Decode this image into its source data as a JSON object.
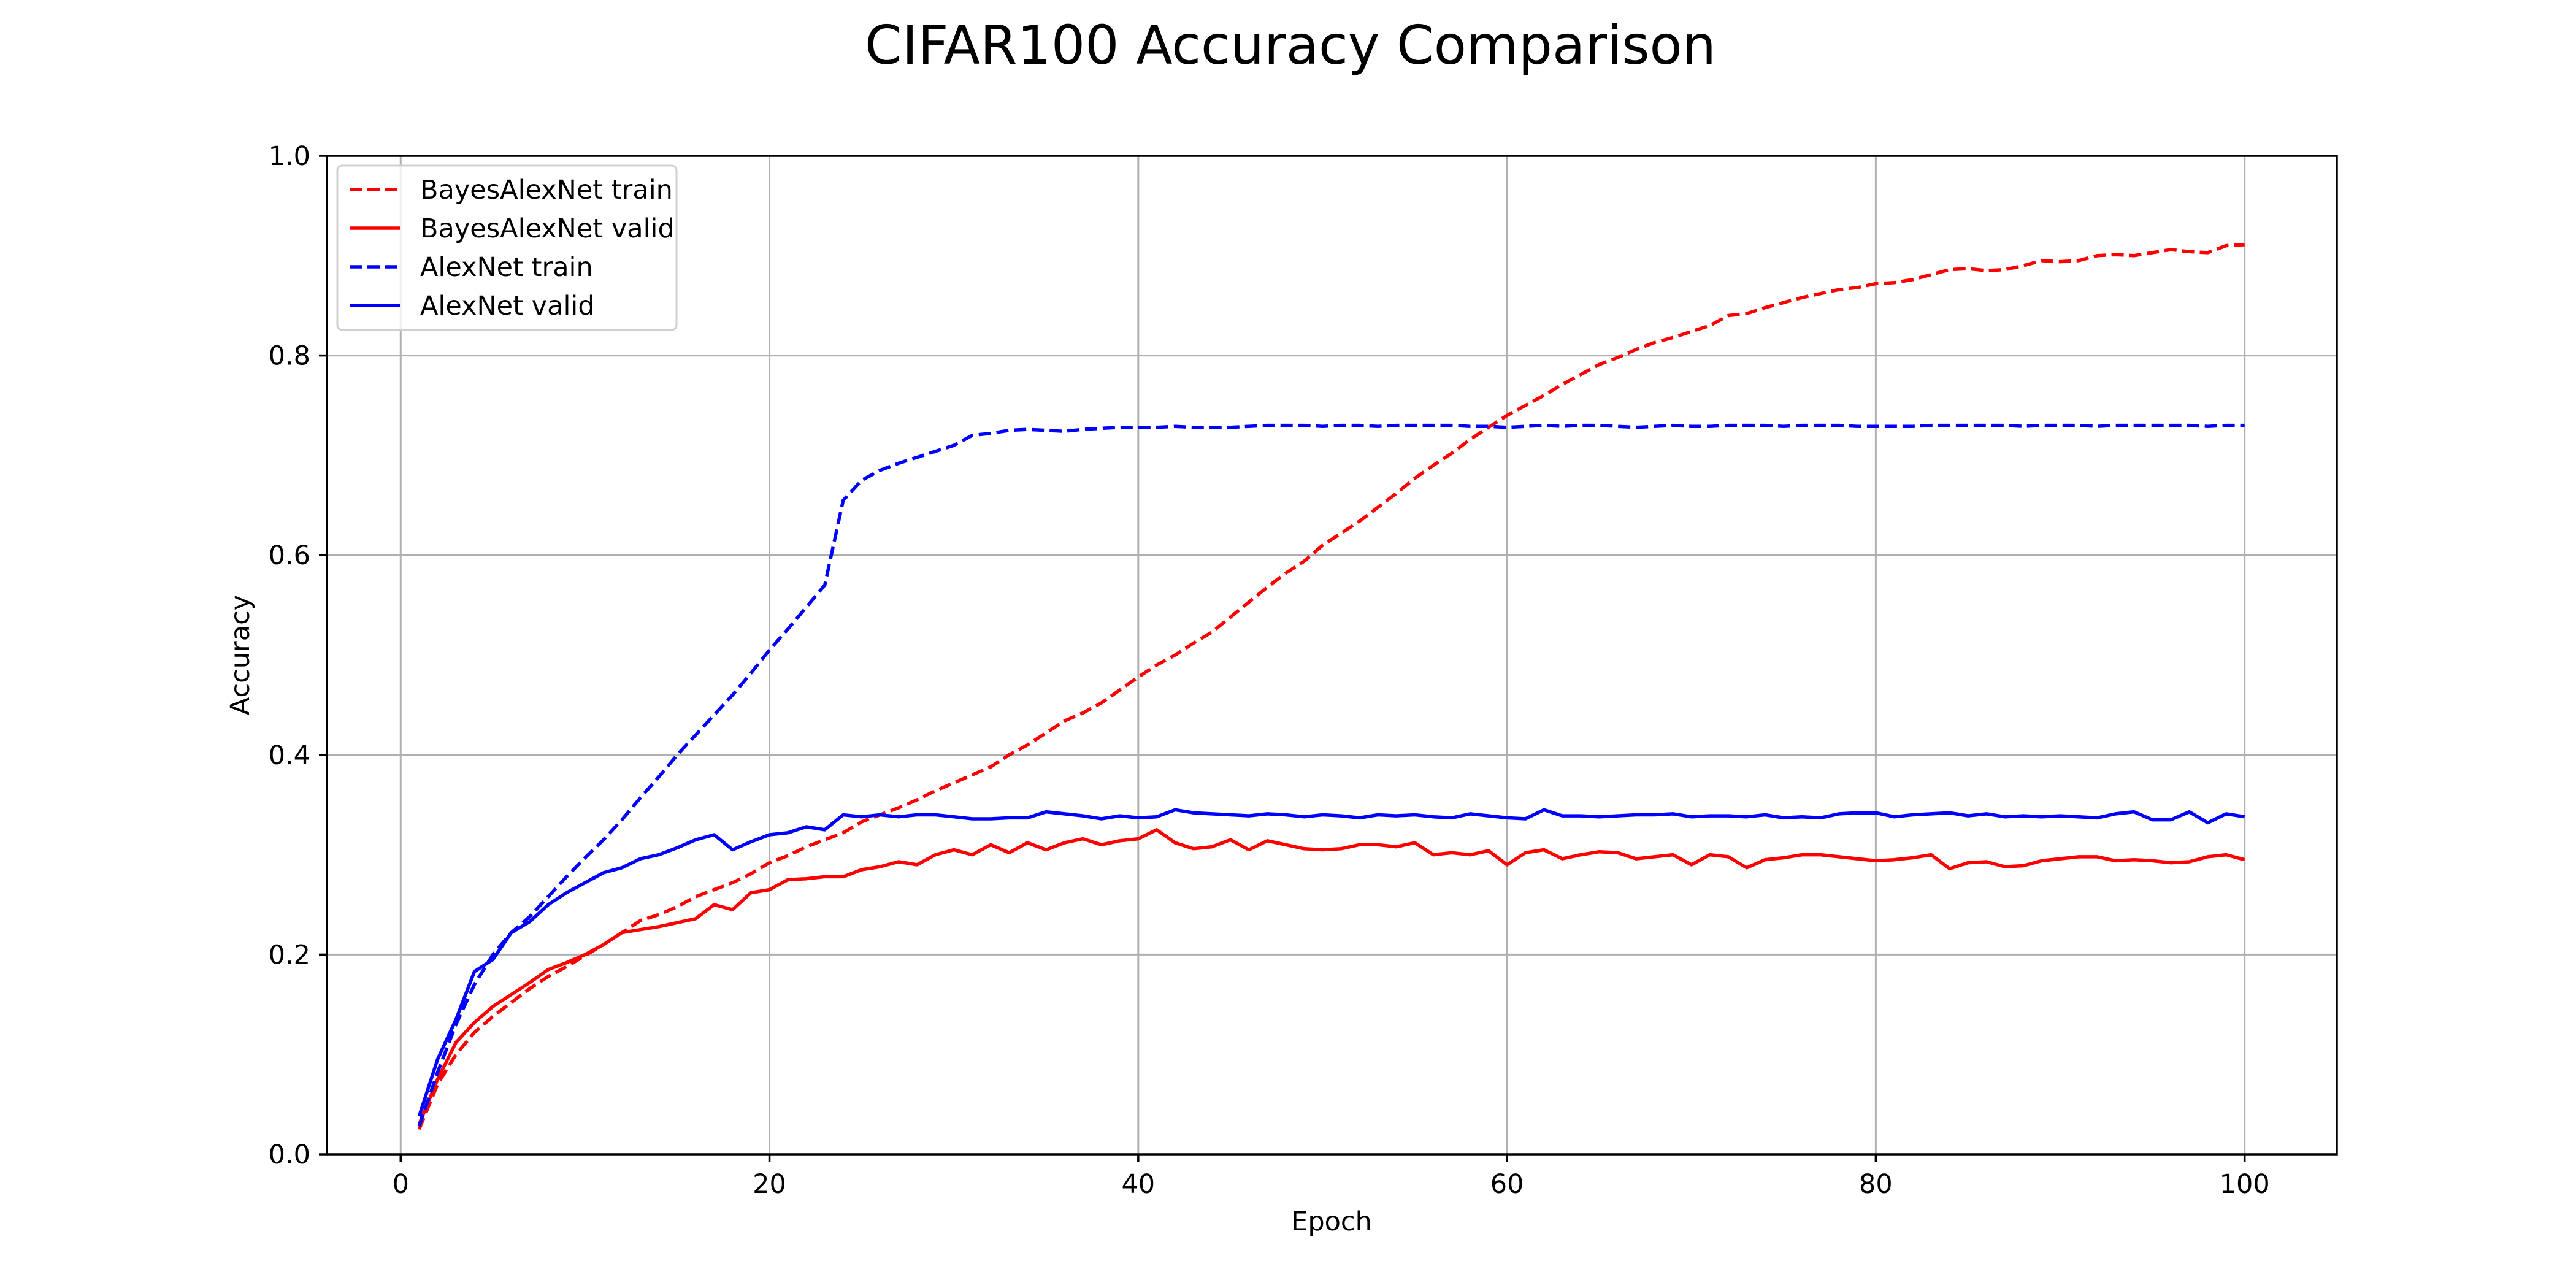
{
  "chart_data": {
    "type": "line",
    "title": "CIFAR100 Accuracy Comparison",
    "xlabel": "Epoch",
    "ylabel": "Accuracy",
    "xlim": [
      -4,
      105
    ],
    "ylim": [
      0.0,
      1.0
    ],
    "xticks": [
      0,
      20,
      40,
      60,
      80,
      100
    ],
    "xtick_labels": [
      "0",
      "20",
      "40",
      "60",
      "80",
      "100"
    ],
    "yticks": [
      0.0,
      0.2,
      0.4,
      0.6,
      0.8,
      1.0
    ],
    "ytick_labels": [
      "0.0",
      "0.2",
      "0.4",
      "0.6",
      "0.8",
      "1.0"
    ],
    "grid": true,
    "legend_position": "upper-left",
    "series": [
      {
        "name": "BayesAlexNet train",
        "color": "#ff0000",
        "style": "dashed",
        "values": [
          0.025,
          0.07,
          0.1,
          0.122,
          0.138,
          0.152,
          0.166,
          0.178,
          0.188,
          0.199,
          0.21,
          0.222,
          0.234,
          0.24,
          0.248,
          0.258,
          0.265,
          0.272,
          0.281,
          0.292,
          0.299,
          0.308,
          0.315,
          0.322,
          0.333,
          0.34,
          0.347,
          0.355,
          0.364,
          0.372,
          0.38,
          0.388,
          0.4,
          0.41,
          0.422,
          0.434,
          0.442,
          0.452,
          0.465,
          0.478,
          0.49,
          0.5,
          0.512,
          0.523,
          0.538,
          0.553,
          0.568,
          0.582,
          0.594,
          0.61,
          0.622,
          0.634,
          0.648,
          0.662,
          0.677,
          0.69,
          0.702,
          0.716,
          0.728,
          0.74,
          0.75,
          0.76,
          0.771,
          0.781,
          0.791,
          0.798,
          0.806,
          0.813,
          0.818,
          0.824,
          0.83,
          0.84,
          0.842,
          0.848,
          0.853,
          0.858,
          0.862,
          0.866,
          0.868,
          0.872,
          0.873,
          0.876,
          0.881,
          0.886,
          0.887,
          0.885,
          0.886,
          0.89,
          0.895,
          0.894,
          0.895,
          0.9,
          0.901,
          0.9,
          0.903,
          0.906,
          0.904,
          0.903,
          0.91,
          0.911
        ]
      },
      {
        "name": "BayesAlexNet valid",
        "color": "#ff0000",
        "style": "solid",
        "values": [
          0.03,
          0.075,
          0.112,
          0.132,
          0.148,
          0.16,
          0.172,
          0.185,
          0.192,
          0.2,
          0.21,
          0.222,
          0.225,
          0.228,
          0.232,
          0.236,
          0.25,
          0.245,
          0.262,
          0.265,
          0.275,
          0.276,
          0.278,
          0.278,
          0.285,
          0.288,
          0.293,
          0.29,
          0.3,
          0.305,
          0.3,
          0.31,
          0.302,
          0.312,
          0.305,
          0.312,
          0.316,
          0.31,
          0.314,
          0.316,
          0.325,
          0.312,
          0.306,
          0.308,
          0.315,
          0.305,
          0.314,
          0.31,
          0.306,
          0.305,
          0.306,
          0.31,
          0.31,
          0.308,
          0.312,
          0.3,
          0.302,
          0.3,
          0.304,
          0.29,
          0.302,
          0.305,
          0.296,
          0.3,
          0.303,
          0.302,
          0.296,
          0.298,
          0.3,
          0.29,
          0.3,
          0.298,
          0.287,
          0.295,
          0.297,
          0.3,
          0.3,
          0.298,
          0.296,
          0.294,
          0.295,
          0.297,
          0.3,
          0.286,
          0.292,
          0.293,
          0.288,
          0.289,
          0.294,
          0.296,
          0.298,
          0.298,
          0.294,
          0.295,
          0.294,
          0.292,
          0.293,
          0.298,
          0.3,
          0.295
        ]
      },
      {
        "name": "AlexNet train",
        "color": "#0000ff",
        "style": "dashed",
        "values": [
          0.028,
          0.082,
          0.13,
          0.17,
          0.2,
          0.222,
          0.238,
          0.258,
          0.278,
          0.297,
          0.315,
          0.335,
          0.357,
          0.378,
          0.4,
          0.42,
          0.44,
          0.46,
          0.482,
          0.505,
          0.526,
          0.548,
          0.57,
          0.655,
          0.675,
          0.685,
          0.692,
          0.698,
          0.704,
          0.71,
          0.72,
          0.722,
          0.725,
          0.726,
          0.725,
          0.724,
          0.726,
          0.727,
          0.728,
          0.728,
          0.728,
          0.729,
          0.728,
          0.728,
          0.728,
          0.729,
          0.73,
          0.73,
          0.73,
          0.729,
          0.73,
          0.73,
          0.729,
          0.73,
          0.73,
          0.73,
          0.73,
          0.729,
          0.729,
          0.728,
          0.729,
          0.73,
          0.729,
          0.73,
          0.73,
          0.729,
          0.728,
          0.729,
          0.73,
          0.729,
          0.729,
          0.73,
          0.73,
          0.73,
          0.729,
          0.73,
          0.73,
          0.73,
          0.729,
          0.729,
          0.729,
          0.729,
          0.73,
          0.73,
          0.73,
          0.73,
          0.73,
          0.729,
          0.73,
          0.73,
          0.73,
          0.729,
          0.73,
          0.73,
          0.73,
          0.73,
          0.73,
          0.729,
          0.73,
          0.73
        ]
      },
      {
        "name": "AlexNet valid",
        "color": "#0000ff",
        "style": "solid",
        "values": [
          0.038,
          0.095,
          0.135,
          0.183,
          0.195,
          0.222,
          0.233,
          0.25,
          0.262,
          0.272,
          0.282,
          0.287,
          0.296,
          0.3,
          0.307,
          0.315,
          0.32,
          0.305,
          0.313,
          0.32,
          0.322,
          0.328,
          0.325,
          0.34,
          0.338,
          0.34,
          0.338,
          0.34,
          0.34,
          0.338,
          0.336,
          0.336,
          0.337,
          0.337,
          0.343,
          0.341,
          0.339,
          0.336,
          0.339,
          0.337,
          0.338,
          0.345,
          0.342,
          0.341,
          0.34,
          0.339,
          0.341,
          0.34,
          0.338,
          0.34,
          0.339,
          0.337,
          0.34,
          0.339,
          0.34,
          0.338,
          0.337,
          0.341,
          0.339,
          0.337,
          0.336,
          0.345,
          0.339,
          0.339,
          0.338,
          0.339,
          0.34,
          0.34,
          0.341,
          0.338,
          0.339,
          0.339,
          0.338,
          0.34,
          0.337,
          0.338,
          0.337,
          0.341,
          0.342,
          0.342,
          0.338,
          0.34,
          0.341,
          0.342,
          0.339,
          0.341,
          0.338,
          0.339,
          0.338,
          0.339,
          0.338,
          0.337,
          0.341,
          0.343,
          0.335,
          0.335,
          0.343,
          0.332,
          0.341,
          0.338
        ]
      }
    ]
  }
}
